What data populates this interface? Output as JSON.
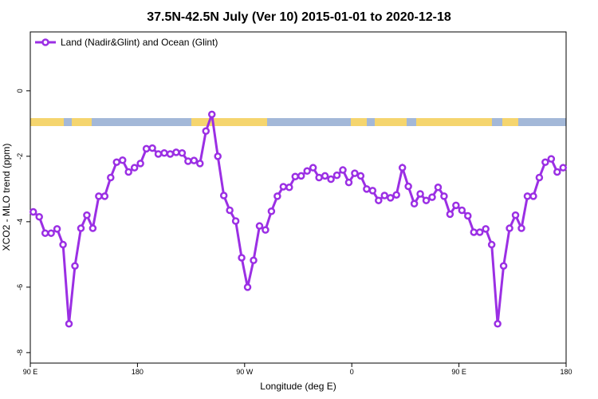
{
  "chart_data": {
    "type": "line",
    "title": "37.5N-42.5N July (Ver 10)   2015-01-01 to 2020-12-18",
    "x_label": "Longitude (deg E)",
    "y_label": "XCO2 - MLO trend (ppm)",
    "legend": "top-left",
    "x": [
      92.5,
      97.5,
      102.5,
      107.5,
      112.5,
      117.5,
      122.5,
      127.5,
      132.5,
      137.5,
      142.5,
      147.5,
      152.5,
      157.5,
      162.5,
      167.5,
      172.5,
      177.5,
      182.5,
      187.5,
      192.5,
      197.5,
      202.5,
      207.5,
      212.5,
      217.5,
      222.5,
      227.5,
      232.5,
      237.5,
      242.5,
      247.5,
      252.5,
      257.5,
      262.5,
      267.5,
      272.5,
      277.5,
      282.5,
      287.5,
      292.5,
      297.5,
      302.5,
      307.5,
      312.5,
      317.5,
      322.5,
      327.5,
      332.5,
      337.5,
      342.5,
      347.5,
      352.5,
      357.5,
      362.5,
      367.5,
      372.5,
      377.5,
      382.5,
      387.5,
      392.5,
      397.5,
      402.5,
      407.5,
      412.5,
      417.5,
      422.5,
      427.5,
      432.5,
      437.5,
      442.5,
      447.5,
      452.5,
      457.5,
      462.5,
      467.5,
      472.5,
      477.5,
      482.5,
      487.5,
      492.5,
      497.5,
      502.5,
      507.5,
      512.5,
      517.5,
      522.5,
      527.5,
      532.5,
      537.5
    ],
    "series": [
      {
        "name": "Land (Nadir&Glint) and Ocean (Glint)",
        "color": "#9b2fe4",
        "values": [
          -3.7,
          -3.85,
          -4.35,
          -4.35,
          -4.22,
          -4.7,
          -7.12,
          -5.35,
          -4.2,
          -3.8,
          -4.2,
          -3.22,
          -3.22,
          -2.65,
          -2.18,
          -2.12,
          -2.48,
          -2.35,
          -2.22,
          -1.77,
          -1.75,
          -1.93,
          -1.9,
          -1.93,
          -1.88,
          -1.9,
          -2.15,
          -2.13,
          -2.22,
          -1.23,
          -0.72,
          -2.0,
          -3.2,
          -3.65,
          -3.98,
          -5.1,
          -6.0,
          -5.18,
          -4.13,
          -4.25,
          -3.68,
          -3.22,
          -2.93,
          -2.95,
          -2.62,
          -2.6,
          -2.45,
          -2.35,
          -2.65,
          -2.6,
          -2.7,
          -2.58,
          -2.42,
          -2.8,
          -2.52,
          -2.6,
          -3.0,
          -3.05,
          -3.35,
          -3.2,
          -3.27,
          -3.18,
          -2.35,
          -2.92,
          -3.45,
          -3.15,
          -3.35,
          -3.25,
          -2.95,
          -3.22,
          -3.77,
          -3.5,
          -3.65,
          -3.82,
          -4.32,
          -4.32,
          -4.22,
          -4.7,
          -7.12,
          -5.35,
          -4.2,
          -3.8,
          -4.2,
          -3.22,
          -3.22,
          -2.65,
          -2.18,
          -2.08,
          -2.48,
          -2.35
        ]
      }
    ],
    "xlim": [
      90,
      540
    ],
    "xticks": [
      {
        "value": 90,
        "label": "90 E"
      },
      180,
      {
        "value": 270,
        "label": "90 W"
      },
      {
        "value": 360,
        "label": "0"
      },
      {
        "value": 450,
        "label": "90 E"
      },
      {
        "value": 540,
        "label": "180"
      }
    ],
    "ylim": [
      -8.32,
      1.8
    ],
    "yticks": [
      0,
      -2,
      -4,
      -6,
      -8
    ]
  }
}
